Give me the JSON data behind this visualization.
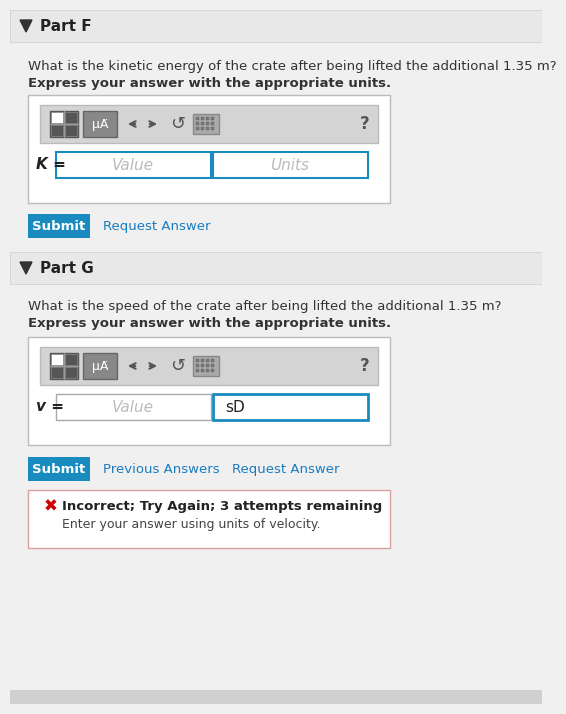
{
  "bg_color": "#f0f0f0",
  "white": "#ffffff",
  "part_f_title": "Part F",
  "part_g_title": "Part G",
  "part_f_question": "What is the kinetic energy of the crate after being lifted the additional 1.35 m?",
  "part_f_bold": "Express your answer with the appropriate units.",
  "part_g_question": "What is the speed of the crate after being lifted the additional 1.35 m?",
  "part_g_bold": "Express your answer with the appropriate units.",
  "k_label": "K =",
  "v_label": "v =",
  "value_placeholder": "Value",
  "units_placeholder": "Units",
  "sd_text": "sD",
  "submit_color": "#1a8bbf",
  "submit_text": "Submit",
  "request_answer_text": "Request Answer",
  "previous_answers_text": "Previous Answers",
  "link_color": "#1a7bbf",
  "error_icon": "✖",
  "error_color": "#cc0000",
  "error_bg": "#ffffff",
  "error_bold": "Incorrect; Try Again; 3 attempts remaining",
  "error_normal": "Enter your answer using units of velocity.",
  "input_border_active": "#1a8bbf",
  "section_header_bg": "#e8e8e8"
}
